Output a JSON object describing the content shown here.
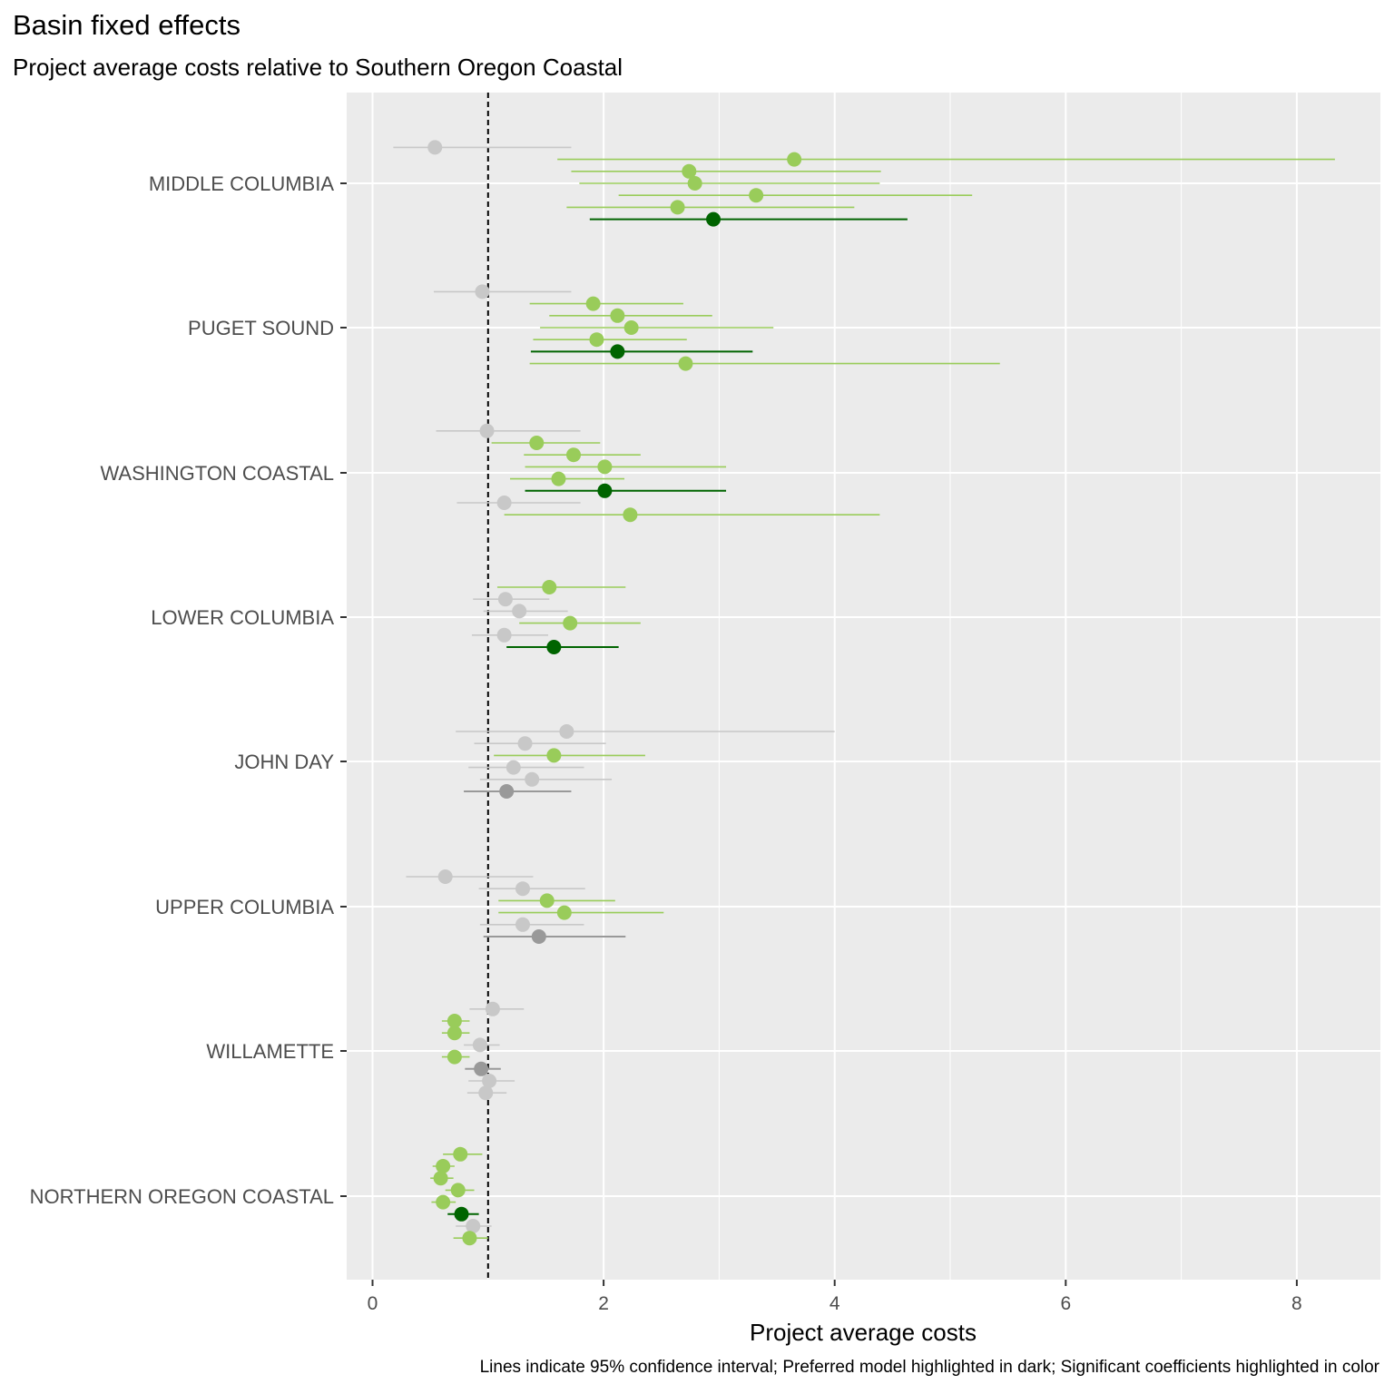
{
  "title": "Basin fixed effects",
  "subtitle": "Project average costs relative to Southern Oregon Coastal",
  "caption": "Lines indicate 95% confidence interval; Preferred model highlighted in dark; Significant coefficients highlighted in color",
  "colors": {
    "panel_bg": "#ebebeb",
    "grid": "#ffffff",
    "significant": "#99cc5a",
    "preferred_significant": "#006400",
    "not_significant": "#c8c8c8",
    "preferred_not_significant": "#999999",
    "reference_line": "#000000"
  },
  "chart_data": {
    "type": "scatter",
    "subtype": "dot-and-whisker",
    "title": "Basin fixed effects",
    "subtitle": "Project average costs relative to Southern Oregon Coastal",
    "xlabel": "Project average costs",
    "ylabel": "",
    "xlim": [
      -0.22,
      8.75
    ],
    "x_ticks": [
      0,
      2,
      4,
      6,
      8
    ],
    "x_tick_labels": [
      "0",
      "2",
      "4",
      "6",
      "8"
    ],
    "reference_line": {
      "x": 1,
      "style": "dashed"
    },
    "grid": true,
    "legend": "none",
    "categories": [
      "MIDDLE COLUMBIA",
      "PUGET SOUND",
      "WASHINGTON COASTAL",
      "LOWER COLUMBIA",
      "JOHN DAY",
      "UPPER COLUMBIA",
      "WILLAMETTE",
      "NORTHERN OREGON COASTAL"
    ],
    "groups": [
      {
        "basin": "MIDDLE COLUMBIA",
        "estimates": [
          {
            "est": 0.54,
            "lo": 0.18,
            "hi": 1.72,
            "significant": false,
            "preferred": false
          },
          {
            "est": 3.65,
            "lo": 1.6,
            "hi": 8.33,
            "significant": true,
            "preferred": false
          },
          {
            "est": 2.74,
            "lo": 1.72,
            "hi": 4.4,
            "significant": true,
            "preferred": false
          },
          {
            "est": 2.79,
            "lo": 1.79,
            "hi": 4.39,
            "significant": true,
            "preferred": false
          },
          {
            "est": 3.32,
            "lo": 2.13,
            "hi": 5.19,
            "significant": true,
            "preferred": false
          },
          {
            "est": 2.64,
            "lo": 1.68,
            "hi": 4.17,
            "significant": true,
            "preferred": false
          },
          {
            "est": 2.95,
            "lo": 1.88,
            "hi": 4.63,
            "significant": true,
            "preferred": true
          }
        ]
      },
      {
        "basin": "PUGET SOUND",
        "estimates": [
          {
            "est": 0.95,
            "lo": 0.53,
            "hi": 1.72,
            "significant": false,
            "preferred": false
          },
          {
            "est": 1.91,
            "lo": 1.36,
            "hi": 2.69,
            "significant": true,
            "preferred": false
          },
          {
            "est": 2.12,
            "lo": 1.53,
            "hi": 2.94,
            "significant": true,
            "preferred": false
          },
          {
            "est": 2.24,
            "lo": 1.45,
            "hi": 3.47,
            "significant": true,
            "preferred": false
          },
          {
            "est": 1.94,
            "lo": 1.39,
            "hi": 2.72,
            "significant": true,
            "preferred": false
          },
          {
            "est": 2.12,
            "lo": 1.37,
            "hi": 3.29,
            "significant": true,
            "preferred": true
          },
          {
            "est": 2.71,
            "lo": 1.36,
            "hi": 5.43,
            "significant": true,
            "preferred": false
          }
        ]
      },
      {
        "basin": "WASHINGTON COASTAL",
        "estimates": [
          {
            "est": 0.99,
            "lo": 0.55,
            "hi": 1.8,
            "significant": false,
            "preferred": false
          },
          {
            "est": 1.42,
            "lo": 1.03,
            "hi": 1.97,
            "significant": true,
            "preferred": false
          },
          {
            "est": 1.74,
            "lo": 1.31,
            "hi": 2.32,
            "significant": true,
            "preferred": false
          },
          {
            "est": 2.01,
            "lo": 1.32,
            "hi": 3.06,
            "significant": true,
            "preferred": false
          },
          {
            "est": 1.61,
            "lo": 1.19,
            "hi": 2.18,
            "significant": true,
            "preferred": false
          },
          {
            "est": 2.01,
            "lo": 1.32,
            "hi": 3.06,
            "significant": true,
            "preferred": true
          },
          {
            "est": 1.14,
            "lo": 0.73,
            "hi": 1.8,
            "significant": false,
            "preferred": false
          },
          {
            "est": 2.23,
            "lo": 1.14,
            "hi": 4.39,
            "significant": true,
            "preferred": false
          }
        ]
      },
      {
        "basin": "LOWER COLUMBIA",
        "estimates": [
          {
            "est": 1.53,
            "lo": 1.08,
            "hi": 2.19,
            "significant": true,
            "preferred": false
          },
          {
            "est": 1.15,
            "lo": 0.87,
            "hi": 1.53,
            "significant": false,
            "preferred": false
          },
          {
            "est": 1.27,
            "lo": 0.96,
            "hi": 1.69,
            "significant": false,
            "preferred": false
          },
          {
            "est": 1.71,
            "lo": 1.27,
            "hi": 2.32,
            "significant": true,
            "preferred": false
          },
          {
            "est": 1.14,
            "lo": 0.86,
            "hi": 1.52,
            "significant": false,
            "preferred": false
          },
          {
            "est": 1.57,
            "lo": 1.16,
            "hi": 2.13,
            "significant": true,
            "preferred": true
          }
        ]
      },
      {
        "basin": "JOHN DAY",
        "estimates": [
          {
            "est": 1.68,
            "lo": 0.72,
            "hi": 4.0,
            "significant": false,
            "preferred": false
          },
          {
            "est": 1.32,
            "lo": 0.88,
            "hi": 2.02,
            "significant": false,
            "preferred": false
          },
          {
            "est": 1.57,
            "lo": 1.05,
            "hi": 2.36,
            "significant": true,
            "preferred": false
          },
          {
            "est": 1.22,
            "lo": 0.83,
            "hi": 1.83,
            "significant": false,
            "preferred": false
          },
          {
            "est": 1.38,
            "lo": 0.93,
            "hi": 2.07,
            "significant": false,
            "preferred": false
          },
          {
            "est": 1.16,
            "lo": 0.79,
            "hi": 1.72,
            "significant": false,
            "preferred": true
          }
        ]
      },
      {
        "basin": "UPPER COLUMBIA",
        "estimates": [
          {
            "est": 0.63,
            "lo": 0.29,
            "hi": 1.39,
            "significant": false,
            "preferred": false
          },
          {
            "est": 1.3,
            "lo": 0.92,
            "hi": 1.84,
            "significant": false,
            "preferred": false
          },
          {
            "est": 1.51,
            "lo": 1.09,
            "hi": 2.1,
            "significant": true,
            "preferred": false
          },
          {
            "est": 1.66,
            "lo": 1.09,
            "hi": 2.52,
            "significant": true,
            "preferred": false
          },
          {
            "est": 1.3,
            "lo": 0.93,
            "hi": 1.83,
            "significant": false,
            "preferred": false
          },
          {
            "est": 1.44,
            "lo": 0.96,
            "hi": 2.19,
            "significant": false,
            "preferred": true
          }
        ]
      },
      {
        "basin": "WILLAMETTE",
        "estimates": [
          {
            "est": 1.04,
            "lo": 0.84,
            "hi": 1.31,
            "significant": false,
            "preferred": false
          },
          {
            "est": 0.71,
            "lo": 0.6,
            "hi": 0.84,
            "significant": true,
            "preferred": false
          },
          {
            "est": 0.71,
            "lo": 0.6,
            "hi": 0.84,
            "significant": true,
            "preferred": false
          },
          {
            "est": 0.93,
            "lo": 0.79,
            "hi": 1.1,
            "significant": false,
            "preferred": false
          },
          {
            "est": 0.71,
            "lo": 0.6,
            "hi": 0.84,
            "significant": true,
            "preferred": false
          },
          {
            "est": 0.94,
            "lo": 0.8,
            "hi": 1.11,
            "significant": false,
            "preferred": true
          },
          {
            "est": 1.01,
            "lo": 0.83,
            "hi": 1.23,
            "significant": false,
            "preferred": false
          },
          {
            "est": 0.98,
            "lo": 0.82,
            "hi": 1.16,
            "significant": false,
            "preferred": false
          }
        ]
      },
      {
        "basin": "NORTHERN OREGON COASTAL",
        "estimates": [
          {
            "est": 0.76,
            "lo": 0.61,
            "hi": 0.95,
            "significant": true,
            "preferred": false
          },
          {
            "est": 0.61,
            "lo": 0.52,
            "hi": 0.71,
            "significant": true,
            "preferred": false
          },
          {
            "est": 0.59,
            "lo": 0.5,
            "hi": 0.7,
            "significant": true,
            "preferred": false
          },
          {
            "est": 0.74,
            "lo": 0.63,
            "hi": 0.88,
            "significant": true,
            "preferred": false
          },
          {
            "est": 0.61,
            "lo": 0.51,
            "hi": 0.72,
            "significant": true,
            "preferred": false
          },
          {
            "est": 0.77,
            "lo": 0.65,
            "hi": 0.92,
            "significant": true,
            "preferred": true
          },
          {
            "est": 0.87,
            "lo": 0.72,
            "hi": 1.03,
            "significant": false,
            "preferred": false
          },
          {
            "est": 0.84,
            "lo": 0.7,
            "hi": 1.0,
            "significant": true,
            "preferred": false
          }
        ]
      }
    ]
  }
}
